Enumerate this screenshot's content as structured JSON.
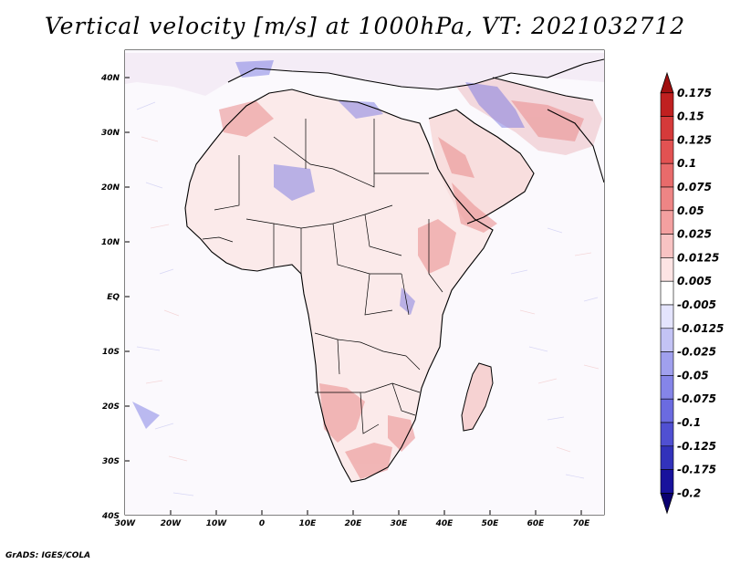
{
  "title": "Vertical velocity [m/s] at 1000hPa, VT: 2021032712",
  "credit": "GrADS: IGES/COLA",
  "map": {
    "lon_range": [
      -30,
      75
    ],
    "lat_range": [
      -40,
      45
    ],
    "lon_ticks": [
      "30W",
      "20W",
      "10W",
      "0",
      "10E",
      "20E",
      "30E",
      "40E",
      "50E",
      "60E",
      "70E"
    ],
    "lat_ticks": [
      "40N",
      "30N",
      "20N",
      "10N",
      "EQ",
      "10S",
      "20S",
      "30S",
      "40S"
    ]
  },
  "colorbar": {
    "labels": [
      "0.175",
      "0.15",
      "0.125",
      "0.1",
      "0.075",
      "0.05",
      "0.025",
      "0.0125",
      "0.005",
      "-0.005",
      "-0.0125",
      "-0.025",
      "-0.05",
      "-0.075",
      "-0.1",
      "-0.125",
      "-0.175",
      "-0.2"
    ],
    "colors": [
      "#a01010",
      "#c02020",
      "#d53a3a",
      "#e25252",
      "#e86b6b",
      "#ee8585",
      "#f3a0a0",
      "#f8c3c3",
      "#fde4e4",
      "#ffffff",
      "#e4e4fd",
      "#c3c3f5",
      "#a0a0ee",
      "#8585e8",
      "#6b6be0",
      "#5050d2",
      "#3232bb",
      "#18129c",
      "#0a0070"
    ]
  }
}
